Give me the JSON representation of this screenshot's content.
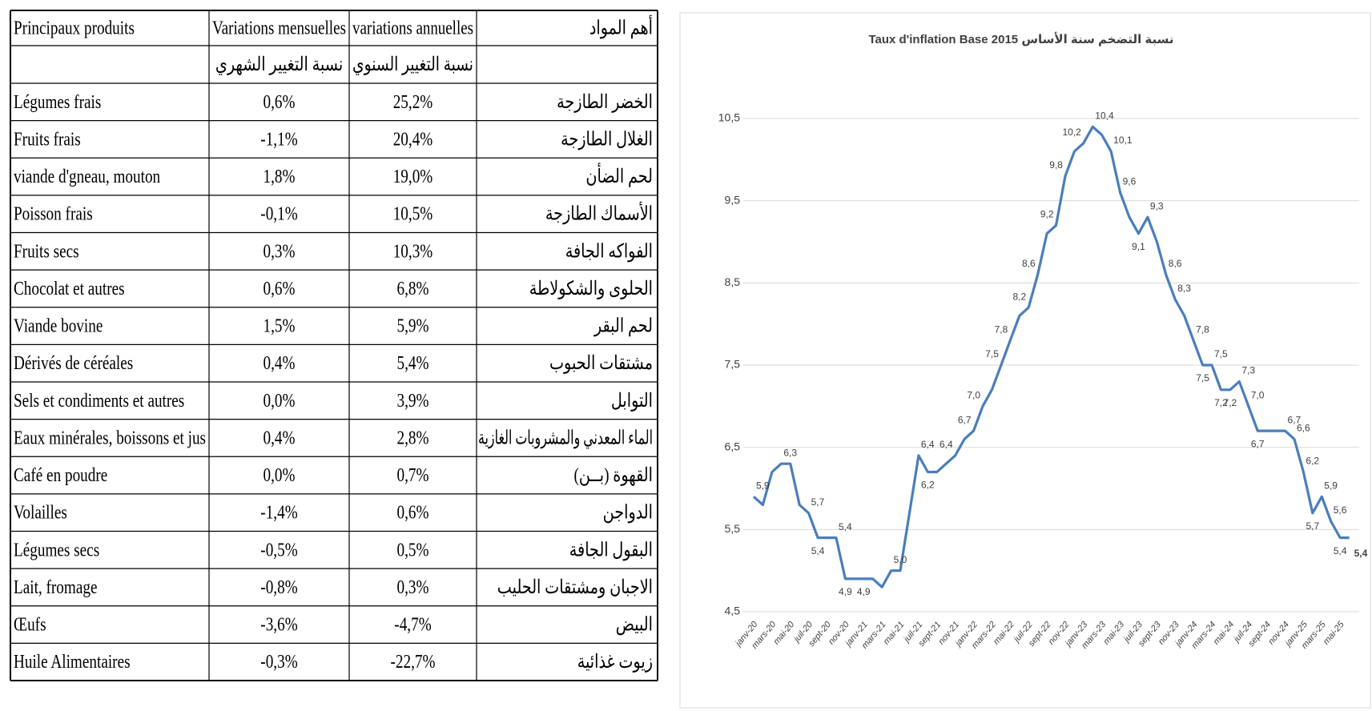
{
  "table": {
    "header": [
      "Principaux produits",
      "Variations mensuelles",
      "variations annuelles",
      "أهم المواد"
    ],
    "subheader": [
      "نسبة التغيير الشهري",
      "نسبة التغيير السنوي"
    ],
    "rows": [
      [
        "Légumes frais",
        "0,6%",
        "25,2%",
        "الخضر الطازجة"
      ],
      [
        "Fruits frais",
        "-1,1%",
        "20,4%",
        "الغلال الطازجة"
      ],
      [
        "viande d'gneau, mouton",
        "1,8%",
        "19,0%",
        "لحم الضأن"
      ],
      [
        "Poisson frais",
        "-0,1%",
        "10,5%",
        "الأسماك الطازجة"
      ],
      [
        "Fruits secs",
        "0,3%",
        "10,3%",
        "الفواكه الجافة"
      ],
      [
        "Chocolat et autres",
        "0,6%",
        "6,8%",
        "الحلوى والشكولاطة"
      ],
      [
        "Viande bovine",
        "1,5%",
        "5,9%",
        "لحم البقر"
      ],
      [
        "Dérivés de céréales",
        "0,4%",
        "5,4%",
        "مشتقات الحبوب"
      ],
      [
        "Sels et condiments et autres",
        "0,0%",
        "3,9%",
        "التوابل"
      ],
      [
        "Eaux minérales, boissons et jus",
        "0,4%",
        "2,8%",
        "الماء المعدني والمشروبات الغازية"
      ],
      [
        "Café en poudre",
        "0,0%",
        "0,7%",
        "القهوة (بــن)"
      ],
      [
        "Volailles",
        "-1,4%",
        "0,6%",
        "الدواجن"
      ],
      [
        "Légumes secs",
        "-0,5%",
        "0,5%",
        "البقول الجافة"
      ],
      [
        "Lait, fromage",
        "-0,8%",
        "0,3%",
        "الاجبان ومشتقات الحليب"
      ],
      [
        "Œufs",
        "-3,6%",
        "-4,7%",
        "البيض"
      ],
      [
        "Huile Alimentaires",
        "-0,3%",
        "-22,7%",
        "زيوت غذائية"
      ]
    ]
  },
  "chart_data": {
    "type": "line",
    "title": "Taux d'inflation Base  2015 نسبة التضخم سنة الأساس",
    "categories": [
      "janv-20",
      null,
      "mars-20",
      null,
      "mai-20",
      null,
      "juil-20",
      null,
      "sept-20",
      null,
      "nov-20",
      null,
      "janv-21",
      null,
      "mars-21",
      null,
      "mai-21",
      null,
      "juil-21",
      null,
      "sept-21",
      null,
      "nov-21",
      null,
      "janv-22",
      null,
      "mars-22",
      null,
      "mai-22",
      null,
      "juil-22",
      null,
      "sept-22",
      null,
      "nov-22",
      null,
      "janv-23",
      null,
      "mars-23",
      null,
      "mai-23",
      null,
      "juil-23",
      null,
      "sept-23",
      null,
      "nov-23",
      null,
      "janv-24",
      null,
      "mars-24",
      null,
      "mai-24",
      null,
      "juil-24",
      null,
      "sept-24",
      null,
      "nov-24",
      null,
      "janv-25",
      null,
      "mars-25",
      null,
      "mai-25",
      null
    ],
    "values": [
      5.9,
      5.8,
      6.2,
      6.3,
      6.3,
      5.8,
      5.7,
      5.4,
      5.4,
      5.4,
      4.9,
      4.9,
      4.9,
      4.9,
      4.8,
      5.0,
      5.0,
      5.7,
      6.4,
      6.2,
      6.2,
      6.3,
      6.4,
      6.6,
      6.7,
      7.0,
      7.2,
      7.5,
      7.8,
      8.1,
      8.2,
      8.6,
      9.1,
      9.2,
      9.8,
      10.1,
      10.2,
      10.4,
      10.3,
      10.1,
      9.6,
      9.3,
      9.1,
      9.3,
      9.0,
      8.6,
      8.3,
      8.1,
      7.8,
      7.5,
      7.5,
      7.2,
      7.2,
      7.3,
      7.0,
      6.7,
      6.7,
      6.7,
      6.7,
      6.6,
      6.2,
      5.7,
      5.9,
      5.6,
      5.4,
      5.4
    ],
    "value_labels": [
      "5,9",
      null,
      null,
      "6,3",
      null,
      null,
      "5,7",
      "5,4",
      null,
      "5,4",
      "4,9",
      null,
      "4,9",
      null,
      null,
      "5,0",
      null,
      null,
      "6,4",
      "6,2",
      null,
      null,
      "6,4",
      null,
      "6,7",
      "7,0",
      null,
      "7,5",
      "7,8",
      null,
      "8,2",
      "8,6",
      null,
      "9,2",
      "9,8",
      null,
      "10,2",
      "10,4",
      null,
      "10,1",
      "9,6",
      null,
      "9,1",
      "9,3",
      null,
      "8,6",
      "8,3",
      null,
      "7,8",
      "7,5",
      "7,5",
      "7,2",
      "7,2",
      "7,3",
      "7,0",
      "6,7",
      null,
      null,
      "6,7",
      "6,6",
      "6,2",
      "5,7",
      "5,9",
      "5,6",
      "5,4",
      "5,4"
    ],
    "color": "#4a7ebb",
    "ylim": [
      4.5,
      10.5
    ],
    "yticks": [
      {
        "value": 4.5,
        "label": "4,5"
      },
      {
        "value": 5.5,
        "label": "5,5"
      },
      {
        "value": 6.5,
        "label": "6,5"
      },
      {
        "value": 7.5,
        "label": "7,5"
      },
      {
        "value": 8.5,
        "label": "8,5"
      },
      {
        "value": 9.5,
        "label": "9,5"
      },
      {
        "value": 10.5,
        "label": "10,5"
      }
    ],
    "grid": true
  }
}
